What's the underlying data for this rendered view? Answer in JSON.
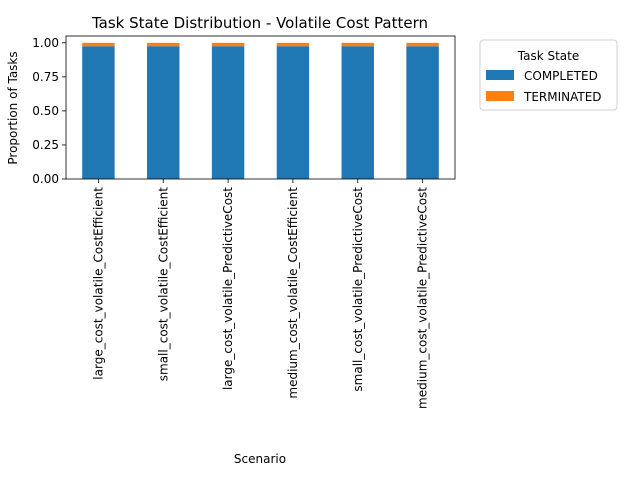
{
  "chart_data": {
    "type": "bar",
    "stacked": true,
    "title": "Task State Distribution - Volatile Cost Pattern",
    "xlabel": "Scenario",
    "ylabel": "Proportion of Tasks",
    "ylim": [
      0,
      1.05
    ],
    "yticks": [
      0.0,
      0.25,
      0.5,
      0.75,
      1.0
    ],
    "ytick_labels": [
      "0.00",
      "0.25",
      "0.50",
      "0.75",
      "1.00"
    ],
    "grid": false,
    "categories": [
      "large_cost_volatile_CostEfficient",
      "small_cost_volatile_CostEfficient",
      "large_cost_volatile_PredictiveCost",
      "medium_cost_volatile_CostEfficient",
      "small_cost_volatile_PredictiveCost",
      "medium_cost_volatile_PredictiveCost"
    ],
    "series": [
      {
        "name": "COMPLETED",
        "color": "#1f77b4",
        "values": [
          0.975,
          0.975,
          0.975,
          0.975,
          0.975,
          0.975
        ]
      },
      {
        "name": "TERMINATED",
        "color": "#ff7f0e",
        "values": [
          0.025,
          0.025,
          0.025,
          0.025,
          0.025,
          0.025
        ]
      }
    ],
    "legend": {
      "title": "Task State",
      "placement": "outside-right-top"
    }
  }
}
